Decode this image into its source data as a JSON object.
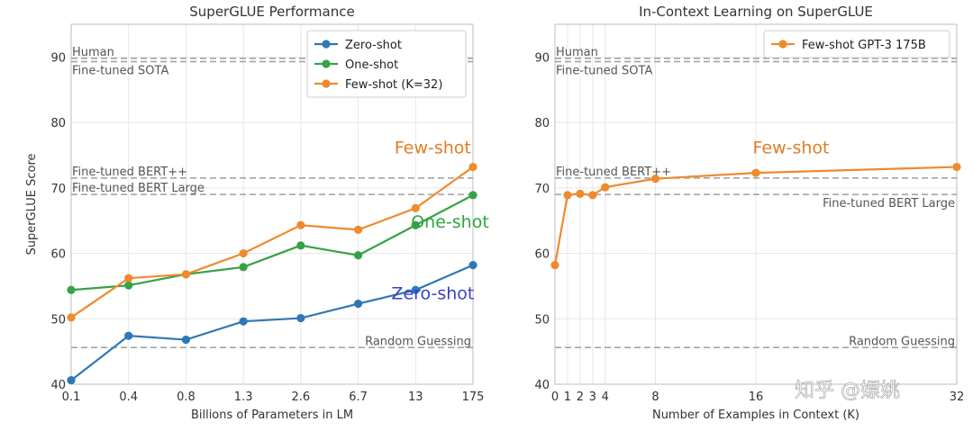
{
  "chart_data": [
    {
      "type": "line",
      "title": "SuperGLUE Performance",
      "xlabel": "Billions of Parameters in LM",
      "ylabel": "SuperGLUE Score",
      "x_scale": "categorical",
      "categories": [
        "0.1",
        "0.4",
        "0.8",
        "1.3",
        "2.6",
        "6.7",
        "13",
        "175"
      ],
      "ylim": [
        40,
        95
      ],
      "yticks": [
        40,
        50,
        60,
        70,
        80,
        90
      ],
      "grid": true,
      "legend_position": "top-right",
      "series": [
        {
          "name": "Zero-shot",
          "color": "#2f78b5",
          "values": [
            40.6,
            47.4,
            46.8,
            49.6,
            50.1,
            52.3,
            54.4,
            58.2
          ]
        },
        {
          "name": "One-shot",
          "color": "#35a246",
          "values": [
            54.4,
            55.1,
            56.8,
            57.9,
            61.2,
            59.7,
            64.3,
            68.9
          ]
        },
        {
          "name": "Few-shot (K=32)",
          "color": "#ef8a2e",
          "values": [
            50.2,
            56.2,
            56.8,
            60.0,
            64.3,
            63.6,
            66.9,
            73.2
          ]
        }
      ],
      "reference_lines": [
        {
          "label": "Human",
          "y": 89.8,
          "label_side": "left",
          "label_pos": "above"
        },
        {
          "label": "Fine-tuned SOTA",
          "y": 89.3,
          "label_side": "left",
          "label_pos": "below"
        },
        {
          "label": "Fine-tuned BERT++",
          "y": 71.5,
          "label_side": "left",
          "label_pos": "above"
        },
        {
          "label": "Fine-tuned BERT Large",
          "y": 69.0,
          "label_side": "left",
          "label_pos": "above"
        },
        {
          "label": "Random Guessing",
          "y": 45.6,
          "label_side": "right",
          "label_pos": "above"
        }
      ],
      "annotations": [
        {
          "text": "Few-shot",
          "color": "#e07d26",
          "x_index": 6.3,
          "y": 75.3
        },
        {
          "text": "One-shot",
          "color": "#2ea63f",
          "x_index": 6.6,
          "y": 63.9
        },
        {
          "text": "Zero-shot",
          "color": "#3a3fbf",
          "x_index": 6.3,
          "y": 53.0
        }
      ]
    },
    {
      "type": "line",
      "title": "In-Context Learning on SuperGLUE",
      "xlabel": "Number of Examples in Context (K)",
      "ylabel": "",
      "x_scale": "linear",
      "xlim": [
        0,
        32
      ],
      "xticks": [
        0,
        1,
        2,
        3,
        4,
        8,
        16,
        32
      ],
      "ylim": [
        40,
        95
      ],
      "yticks": [
        40,
        50,
        60,
        70,
        80,
        90
      ],
      "grid": true,
      "legend_position": "top-right",
      "series": [
        {
          "name": "Few-shot GPT-3 175B",
          "color": "#ef8a2e",
          "x": [
            0,
            1,
            2,
            3,
            4,
            8,
            16,
            32
          ],
          "values": [
            58.2,
            68.9,
            69.1,
            68.9,
            70.1,
            71.4,
            72.3,
            73.2
          ]
        }
      ],
      "reference_lines": [
        {
          "label": "Human",
          "y": 89.8,
          "label_side": "left",
          "label_pos": "above"
        },
        {
          "label": "Fine-tuned SOTA",
          "y": 89.3,
          "label_side": "left",
          "label_pos": "below"
        },
        {
          "label": "Fine-tuned BERT++",
          "y": 71.5,
          "label_side": "left",
          "label_pos": "above"
        },
        {
          "label": "Fine-tuned BERT Large",
          "y": 69.0,
          "label_side": "right",
          "label_pos": "below"
        },
        {
          "label": "Random Guessing",
          "y": 45.6,
          "label_side": "right",
          "label_pos": "above"
        }
      ],
      "annotations": [
        {
          "text": "Few-shot",
          "color": "#e07d26",
          "x": 18.8,
          "y": 75.3
        }
      ]
    }
  ],
  "watermark": "知乎 @嫖姚"
}
